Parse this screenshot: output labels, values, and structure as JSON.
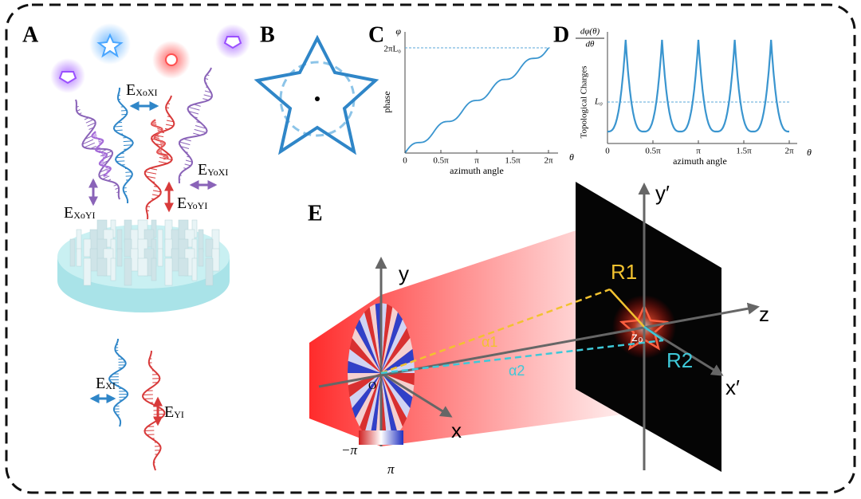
{
  "panels": {
    "A": {
      "label": "A",
      "fields": [
        {
          "main": "E",
          "sub": "XoXI"
        },
        {
          "main": "E",
          "sub": "YoXI"
        },
        {
          "main": "E",
          "sub": "XoYI"
        },
        {
          "main": "E",
          "sub": "YoYI"
        },
        {
          "main": "E",
          "sub": "XI"
        },
        {
          "main": "E",
          "sub": "YI"
        }
      ]
    },
    "B": {
      "label": "B"
    },
    "C": {
      "label": "C",
      "y_symbol": "φ",
      "y_label": "phase",
      "y_tick": "2πL₀",
      "x_ticks": [
        "0",
        "0.5π",
        "π",
        "1.5π",
        "2π"
      ],
      "x_label": "azimuth angle",
      "x_symbol": "θ"
    },
    "D": {
      "label": "D",
      "y_symbol_num": "dφ(θ)",
      "y_symbol_den": "dθ",
      "y_label": "Topological Charges",
      "y_tick": "L₀",
      "x_ticks": [
        "0",
        "0.5π",
        "π",
        "1.5π",
        "2π"
      ],
      "x_label": "azimuth angle",
      "x_symbol": "θ"
    },
    "E": {
      "label": "E",
      "axes": [
        "y",
        "x",
        "z",
        "y′",
        "x′"
      ],
      "origin": "O",
      "r1": "R1",
      "r2": "R2",
      "z0": "z₀",
      "alpha1": "α1",
      "alpha2": "α2",
      "colorbar": [
        "−π",
        "π"
      ]
    }
  }
}
